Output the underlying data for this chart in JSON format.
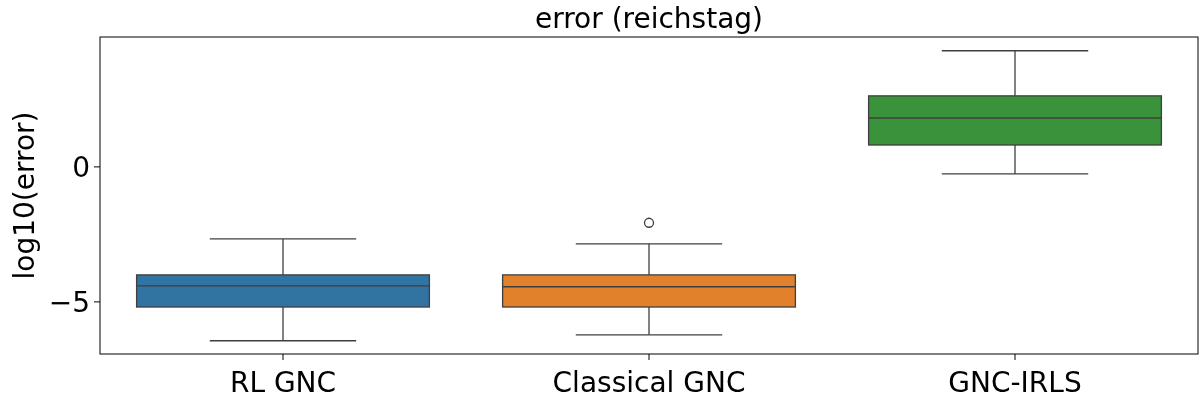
{
  "chart_data": {
    "type": "box",
    "title": "error (reichstag)",
    "ylabel": "log10(error)",
    "categories": [
      "RL GNC",
      "Classical GNC",
      "GNC-IRLS"
    ],
    "colors": [
      "#3274a1",
      "#e1812c",
      "#3a923a"
    ],
    "boxes": [
      {
        "low": -6.44,
        "q1": -5.19,
        "median": -4.41,
        "q3": -4.0,
        "high": -2.67
      },
      {
        "low": -6.22,
        "q1": -5.19,
        "median": -4.44,
        "q3": -4.0,
        "high": -2.85,
        "outliers": [
          -2.07
        ]
      },
      {
        "low": -0.26,
        "q1": 0.81,
        "median": 1.81,
        "q3": 2.63,
        "high": 4.3
      }
    ],
    "ylim": [
      -6.93,
      4.81
    ],
    "yticks": [
      {
        "value": -5,
        "label": "−5"
      },
      0
    ]
  }
}
